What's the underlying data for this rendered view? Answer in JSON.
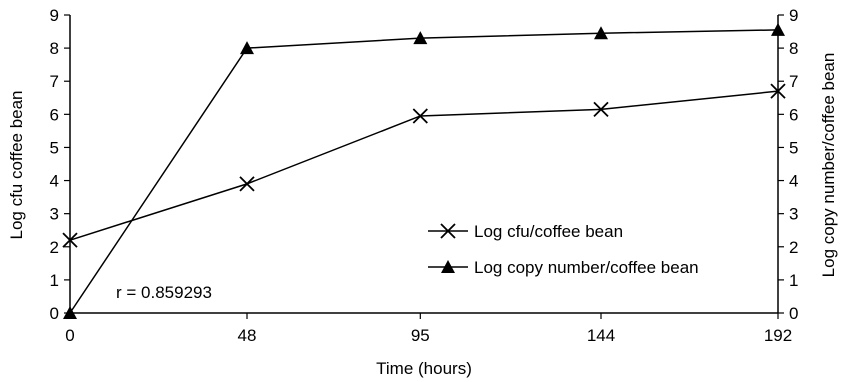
{
  "chart_data": {
    "type": "line",
    "x": [
      0,
      48,
      95,
      144,
      192
    ],
    "x_tick_labels": [
      "0",
      "48",
      "95",
      "144",
      "192"
    ],
    "xlabel": "Time (hours)",
    "ylabel_left": "Log cfu coffee bean",
    "ylabel_right": "Log copy number/coffee bean",
    "ylim_left": [
      0,
      9
    ],
    "ylim_right": [
      0,
      9
    ],
    "y_ticks": [
      0,
      1,
      2,
      3,
      4,
      5,
      6,
      7,
      8,
      9
    ],
    "grid": false,
    "legend_position": "center-right",
    "series": [
      {
        "name": "Log cfu/coffee bean",
        "marker": "x",
        "axis": "left",
        "values": [
          2.2,
          3.9,
          5.95,
          6.15,
          6.7
        ]
      },
      {
        "name": "Log copy number/coffee bean",
        "marker": "triangle",
        "axis": "right",
        "values": [
          0,
          8.0,
          8.3,
          8.45,
          8.55
        ]
      }
    ],
    "annotation": "r = 0.859293",
    "colors": {
      "line": "#000000",
      "background": "#ffffff"
    }
  }
}
